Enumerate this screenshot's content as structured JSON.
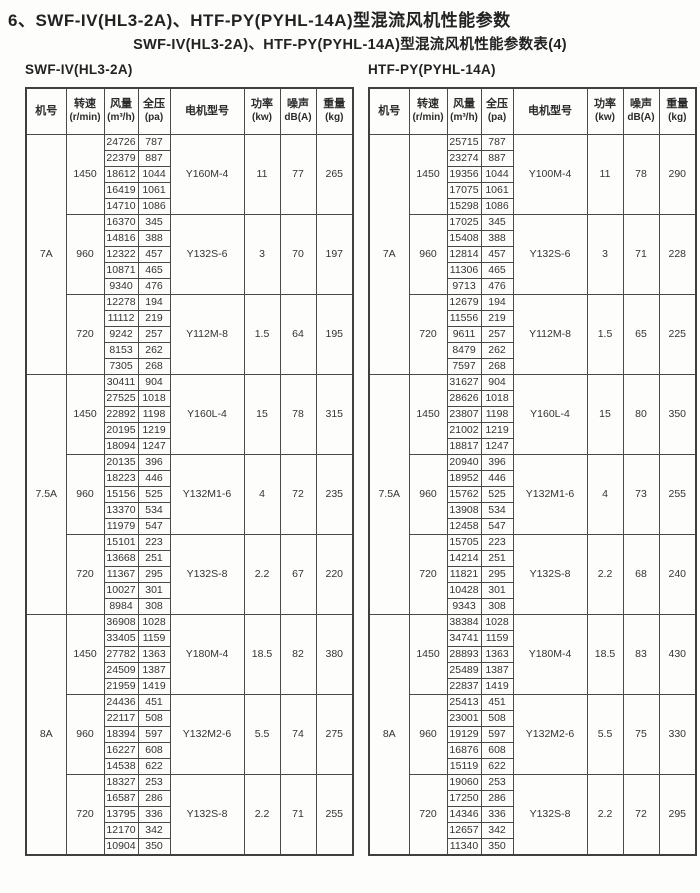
{
  "page": {
    "title": "6、SWF-IV(HL3-2A)、HTF-PY(PYHL-14A)型混流风机性能参数",
    "subtitle": "SWF-IV(HL3-2A)、HTF-PY(PYHL-14A)型混流风机性能参数表(4)"
  },
  "columns": [
    {
      "label": "机号",
      "sub": ""
    },
    {
      "label": "转速",
      "sub": "(r/min)"
    },
    {
      "label": "风量",
      "sub": "(m³/h)"
    },
    {
      "label": "全压",
      "sub": "(pa)"
    },
    {
      "label": "电机型号",
      "sub": ""
    },
    {
      "label": "功率",
      "sub": "(kw)"
    },
    {
      "label": "噪声",
      "sub": "dB(A)"
    },
    {
      "label": "重量",
      "sub": "(kg)"
    }
  ],
  "tables": [
    {
      "label": "SWF-IV(HL3-2A)",
      "groups": [
        {
          "model": "7A",
          "speeds": [
            {
              "rpm": "1450",
              "rows": [
                [
                  "24726",
                  "787"
                ],
                [
                  "22379",
                  "887"
                ],
                [
                  "18612",
                  "1044"
                ],
                [
                  "16419",
                  "1061"
                ],
                [
                  "14710",
                  "1086"
                ]
              ],
              "motor": "Y160M-4",
              "power": "11",
              "noise": "77",
              "weight": "265"
            },
            {
              "rpm": "960",
              "rows": [
                [
                  "16370",
                  "345"
                ],
                [
                  "14816",
                  "388"
                ],
                [
                  "12322",
                  "457"
                ],
                [
                  "10871",
                  "465"
                ],
                [
                  "9340",
                  "476"
                ]
              ],
              "motor": "Y132S-6",
              "power": "3",
              "noise": "70",
              "weight": "197"
            },
            {
              "rpm": "720",
              "rows": [
                [
                  "12278",
                  "194"
                ],
                [
                  "11112",
                  "219"
                ],
                [
                  "9242",
                  "257"
                ],
                [
                  "8153",
                  "262"
                ],
                [
                  "7305",
                  "268"
                ]
              ],
              "motor": "Y112M-8",
              "power": "1.5",
              "noise": "64",
              "weight": "195"
            }
          ]
        },
        {
          "model": "7.5A",
          "speeds": [
            {
              "rpm": "1450",
              "rows": [
                [
                  "30411",
                  "904"
                ],
                [
                  "27525",
                  "1018"
                ],
                [
                  "22892",
                  "1198"
                ],
                [
                  "20195",
                  "1219"
                ],
                [
                  "18094",
                  "1247"
                ]
              ],
              "motor": "Y160L-4",
              "power": "15",
              "noise": "78",
              "weight": "315"
            },
            {
              "rpm": "960",
              "rows": [
                [
                  "20135",
                  "396"
                ],
                [
                  "18223",
                  "446"
                ],
                [
                  "15156",
                  "525"
                ],
                [
                  "13370",
                  "534"
                ],
                [
                  "11979",
                  "547"
                ]
              ],
              "motor": "Y132M1-6",
              "power": "4",
              "noise": "72",
              "weight": "235"
            },
            {
              "rpm": "720",
              "rows": [
                [
                  "15101",
                  "223"
                ],
                [
                  "13668",
                  "251"
                ],
                [
                  "11367",
                  "295"
                ],
                [
                  "10027",
                  "301"
                ],
                [
                  "8984",
                  "308"
                ]
              ],
              "motor": "Y132S-8",
              "power": "2.2",
              "noise": "67",
              "weight": "220"
            }
          ]
        },
        {
          "model": "8A",
          "speeds": [
            {
              "rpm": "1450",
              "rows": [
                [
                  "36908",
                  "1028"
                ],
                [
                  "33405",
                  "1159"
                ],
                [
                  "27782",
                  "1363"
                ],
                [
                  "24509",
                  "1387"
                ],
                [
                  "21959",
                  "1419"
                ]
              ],
              "motor": "Y180M-4",
              "power": "18.5",
              "noise": "82",
              "weight": "380"
            },
            {
              "rpm": "960",
              "rows": [
                [
                  "24436",
                  "451"
                ],
                [
                  "22117",
                  "508"
                ],
                [
                  "18394",
                  "597"
                ],
                [
                  "16227",
                  "608"
                ],
                [
                  "14538",
                  "622"
                ]
              ],
              "motor": "Y132M2-6",
              "power": "5.5",
              "noise": "74",
              "weight": "275"
            },
            {
              "rpm": "720",
              "rows": [
                [
                  "18327",
                  "253"
                ],
                [
                  "16587",
                  "286"
                ],
                [
                  "13795",
                  "336"
                ],
                [
                  "12170",
                  "342"
                ],
                [
                  "10904",
                  "350"
                ]
              ],
              "motor": "Y132S-8",
              "power": "2.2",
              "noise": "71",
              "weight": "255"
            }
          ]
        }
      ]
    },
    {
      "label": "HTF-PY(PYHL-14A)",
      "groups": [
        {
          "model": "7A",
          "speeds": [
            {
              "rpm": "1450",
              "rows": [
                [
                  "25715",
                  "787"
                ],
                [
                  "23274",
                  "887"
                ],
                [
                  "19356",
                  "1044"
                ],
                [
                  "17075",
                  "1061"
                ],
                [
                  "15298",
                  "1086"
                ]
              ],
              "motor": "Y100M-4",
              "power": "11",
              "noise": "78",
              "weight": "290"
            },
            {
              "rpm": "960",
              "rows": [
                [
                  "17025",
                  "345"
                ],
                [
                  "15408",
                  "388"
                ],
                [
                  "12814",
                  "457"
                ],
                [
                  "11306",
                  "465"
                ],
                [
                  "9713",
                  "476"
                ]
              ],
              "motor": "Y132S-6",
              "power": "3",
              "noise": "71",
              "weight": "228"
            },
            {
              "rpm": "720",
              "rows": [
                [
                  "12679",
                  "194"
                ],
                [
                  "11556",
                  "219"
                ],
                [
                  "9611",
                  "257"
                ],
                [
                  "8479",
                  "262"
                ],
                [
                  "7597",
                  "268"
                ]
              ],
              "motor": "Y112M-8",
              "power": "1.5",
              "noise": "65",
              "weight": "225"
            }
          ]
        },
        {
          "model": "7.5A",
          "speeds": [
            {
              "rpm": "1450",
              "rows": [
                [
                  "31627",
                  "904"
                ],
                [
                  "28626",
                  "1018"
                ],
                [
                  "23807",
                  "1198"
                ],
                [
                  "21002",
                  "1219"
                ],
                [
                  "18817",
                  "1247"
                ]
              ],
              "motor": "Y160L-4",
              "power": "15",
              "noise": "80",
              "weight": "350"
            },
            {
              "rpm": "960",
              "rows": [
                [
                  "20940",
                  "396"
                ],
                [
                  "18952",
                  "446"
                ],
                [
                  "15762",
                  "525"
                ],
                [
                  "13908",
                  "534"
                ],
                [
                  "12458",
                  "547"
                ]
              ],
              "motor": "Y132M1-6",
              "power": "4",
              "noise": "73",
              "weight": "255"
            },
            {
              "rpm": "720",
              "rows": [
                [
                  "15705",
                  "223"
                ],
                [
                  "14214",
                  "251"
                ],
                [
                  "11821",
                  "295"
                ],
                [
                  "10428",
                  "301"
                ],
                [
                  "9343",
                  "308"
                ]
              ],
              "motor": "Y132S-8",
              "power": "2.2",
              "noise": "68",
              "weight": "240"
            }
          ]
        },
        {
          "model": "8A",
          "speeds": [
            {
              "rpm": "1450",
              "rows": [
                [
                  "38384",
                  "1028"
                ],
                [
                  "34741",
                  "1159"
                ],
                [
                  "28893",
                  "1363"
                ],
                [
                  "25489",
                  "1387"
                ],
                [
                  "22837",
                  "1419"
                ]
              ],
              "motor": "Y180M-4",
              "power": "18.5",
              "noise": "83",
              "weight": "430"
            },
            {
              "rpm": "960",
              "rows": [
                [
                  "25413",
                  "451"
                ],
                [
                  "23001",
                  "508"
                ],
                [
                  "19129",
                  "597"
                ],
                [
                  "16876",
                  "608"
                ],
                [
                  "15119",
                  "622"
                ]
              ],
              "motor": "Y132M2-6",
              "power": "5.5",
              "noise": "75",
              "weight": "330"
            },
            {
              "rpm": "720",
              "rows": [
                [
                  "19060",
                  "253"
                ],
                [
                  "17250",
                  "286"
                ],
                [
                  "14346",
                  "336"
                ],
                [
                  "12657",
                  "342"
                ],
                [
                  "11340",
                  "350"
                ]
              ],
              "motor": "Y132S-8",
              "power": "2.2",
              "noise": "72",
              "weight": "295"
            }
          ]
        }
      ]
    }
  ]
}
